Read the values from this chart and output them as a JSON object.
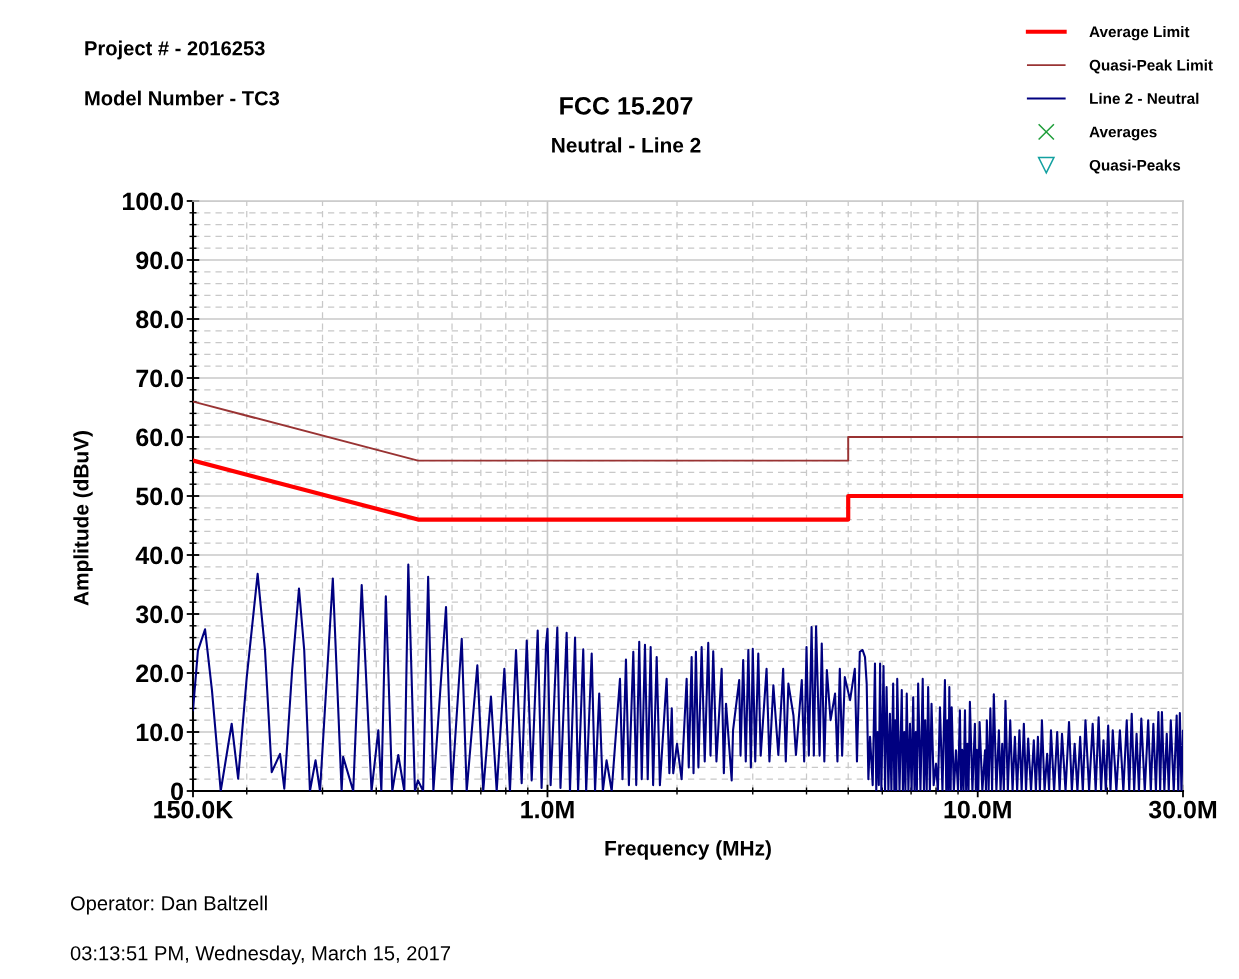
{
  "chart_data": {
    "type": "line",
    "title": "FCC 15.207",
    "subtitle": "Neutral - Line 2",
    "xlabel": "Frequency (MHz)",
    "ylabel": "Amplitude (dBuV)",
    "annotations": [
      "Project # - 2016253",
      "Model Number - TC3",
      "Operator: Dan Baltzell",
      "03:13:51 PM, Wednesday, March 15, 2017"
    ],
    "log": "x",
    "xlim": [
      150000,
      30000000
    ],
    "ylim": [
      0,
      100
    ],
    "xticks": [
      {
        "value": 150000,
        "label": "150.0K"
      },
      {
        "value": 200000,
        "label": null
      },
      {
        "value": 300000,
        "label": null
      },
      {
        "value": 400000,
        "label": null
      },
      {
        "value": 500000,
        "label": null
      },
      {
        "value": 600000,
        "label": null
      },
      {
        "value": 700000,
        "label": null
      },
      {
        "value": 800000,
        "label": null
      },
      {
        "value": 900000,
        "label": null
      },
      {
        "value": 1000000,
        "label": "1.0M"
      },
      {
        "value": 2000000,
        "label": null
      },
      {
        "value": 3000000,
        "label": null
      },
      {
        "value": 4000000,
        "label": null
      },
      {
        "value": 5000000,
        "label": null
      },
      {
        "value": 6000000,
        "label": null
      },
      {
        "value": 7000000,
        "label": null
      },
      {
        "value": 8000000,
        "label": null
      },
      {
        "value": 9000000,
        "label": null
      },
      {
        "value": 10000000,
        "label": "10.0M"
      },
      {
        "value": 20000000,
        "label": null
      },
      {
        "value": 30000000,
        "label": "30.0M"
      }
    ],
    "yticks": [
      0,
      {
        "value": 2,
        "label": null
      },
      {
        "value": 4,
        "label": null
      },
      {
        "value": 6,
        "label": null
      },
      {
        "value": 8,
        "label": null
      },
      {
        "value": 10,
        "label": "10.0"
      },
      {
        "value": 12,
        "label": null
      },
      {
        "value": 14,
        "label": null
      },
      {
        "value": 16,
        "label": null
      },
      {
        "value": 18,
        "label": null
      },
      {
        "value": 20,
        "label": "20.0"
      },
      {
        "value": 22,
        "label": null
      },
      {
        "value": 24,
        "label": null
      },
      {
        "value": 26,
        "label": null
      },
      {
        "value": 28,
        "label": null
      },
      {
        "value": 30,
        "label": "30.0"
      },
      {
        "value": 32,
        "label": null
      },
      {
        "value": 34,
        "label": null
      },
      {
        "value": 36,
        "label": null
      },
      {
        "value": 38,
        "label": null
      },
      {
        "value": 40,
        "label": "40.0"
      },
      {
        "value": 42,
        "label": null
      },
      {
        "value": 44,
        "label": null
      },
      {
        "value": 46,
        "label": null
      },
      {
        "value": 48,
        "label": null
      },
      {
        "value": 50,
        "label": "50.0"
      },
      {
        "value": 52,
        "label": null
      },
      {
        "value": 54,
        "label": null
      },
      {
        "value": 56,
        "label": null
      },
      {
        "value": 58,
        "label": null
      },
      {
        "value": 60,
        "label": "60.0"
      },
      {
        "value": 62,
        "label": null
      },
      {
        "value": 64,
        "label": null
      },
      {
        "value": 66,
        "label": null
      },
      {
        "value": 68,
        "label": null
      },
      {
        "value": 70,
        "label": "70.0"
      },
      {
        "value": 72,
        "label": null
      },
      {
        "value": 74,
        "label": null
      },
      {
        "value": 76,
        "label": null
      },
      {
        "value": 78,
        "label": null
      },
      {
        "value": 80,
        "label": "80.0"
      },
      {
        "value": 82,
        "label": null
      },
      {
        "value": 84,
        "label": null
      },
      {
        "value": 86,
        "label": null
      },
      {
        "value": 88,
        "label": null
      },
      {
        "value": 90,
        "label": "90.0"
      },
      {
        "value": 92,
        "label": null
      },
      {
        "value": 94,
        "label": null
      },
      {
        "value": 96,
        "label": null
      },
      {
        "value": 98,
        "label": null
      },
      {
        "value": 100,
        "label": "100.0"
      }
    ],
    "grid": true,
    "legend": "top right",
    "series": [
      {
        "name": "Average Limit",
        "color": "#ff0000",
        "x": [
          150000,
          500000,
          5000000,
          5000000,
          30000000
        ],
        "values": [
          56,
          46,
          46,
          50,
          50
        ]
      },
      {
        "name": "Quasi-Peak Limit",
        "color": "#993333",
        "x": [
          150000,
          500000,
          5000000,
          5000000,
          30000000
        ],
        "values": [
          66,
          56,
          56,
          60,
          60
        ]
      },
      {
        "name": "Line 2 - Neutral",
        "color": "#000080",
        "x": [
          150000,
          154000,
          160000,
          166000,
          174000,
          184500,
          191000,
          200000,
          212000,
          220500,
          228600,
          239000,
          244500,
          255000,
          264500,
          272000,
          280500,
          289000,
          296000,
          317000,
          332300,
          335000,
          353600,
          370000,
          390000,
          404400,
          411000,
          421000,
          435800,
          450000,
          464800,
          474800,
          492000,
          500000,
          514000,
          528000,
          543000,
          581000,
          599000,
          632000,
          649000,
          687000,
          709000,
          739000,
          762000,
          794000,
          818000,
          845000,
          871000,
          895000,
          919000,
          949000,
          969000,
          992000,
          1000000,
          1017000,
          1054000,
          1072000,
          1108000,
          1128000,
          1159000,
          1178000,
          1211000,
          1230000,
          1267000,
          1290000,
          1319000,
          1345000,
          1372000,
          1410000,
          1474000,
          1494000,
          1522000,
          1546000,
          1583000,
          1608000,
          1634000,
          1656000,
          1685000,
          1710000,
          1737000,
          1760000,
          1794000,
          1825000,
          1892000,
          1920000,
          1945000,
          1960000,
          2000000,
          2050000,
          2106000,
          2130000,
          2163000,
          2185000,
          2213000,
          2243000,
          2282000,
          2320000,
          2364000,
          2393000,
          2428000,
          2470000,
          2540000,
          2570000,
          2600000,
          2680000,
          2700000,
          2790000,
          2810000,
          2850000,
          2890000,
          2930000,
          2970000,
          3000000,
          3040000,
          3090000,
          3130000,
          3230000,
          3280000,
          3350000,
          3440000,
          3530000,
          3580000,
          3630000,
          3730000,
          3780000,
          3900000,
          3950000,
          4000000,
          4050000,
          4110000,
          4160000,
          4210000,
          4290000,
          4340000,
          4400000,
          4460000,
          4550000,
          4660000,
          4720000,
          4780000,
          4840000,
          4910000,
          5050000,
          5180000,
          5240000,
          5320000,
          5400000,
          5470000,
          5520000,
          5570000,
          5620000,
          5700000,
          5770000,
          5810000,
          5850000,
          5890000,
          5930000,
          5970000,
          6040000,
          6090000,
          6140000,
          6200000,
          6250000,
          6300000,
          6360000,
          6400000,
          6430000,
          6470000,
          6500000,
          6580000,
          6660000,
          6700000,
          6750000,
          6790000,
          6840000,
          6900000,
          6960000,
          7020000,
          7080000,
          7130000,
          7180000,
          7220000,
          7270000,
          7360000,
          7450000,
          7500000,
          7550000,
          7610000,
          7670000,
          7740000,
          7810000,
          7900000,
          8000000,
          8080000,
          8170000,
          8280000,
          8390000,
          8450000,
          8500000,
          8550000,
          8590000,
          8650000,
          8700000,
          8800000,
          8900000,
          9000000,
          9090000,
          9150000,
          9200000,
          9270000,
          9340000,
          9400000,
          9460000,
          9520000,
          9590000,
          9720000,
          9850000,
          9900000,
          9960000,
          10030000,
          10100000,
          10250000,
          10400000,
          10450000,
          10500000,
          10600000,
          10700000,
          10800000,
          10900000,
          11050000,
          11200000,
          11300000,
          11400000,
          11500000,
          11600000,
          11750000,
          11900000,
          12050000,
          12200000,
          12350000,
          12500000,
          12650000,
          12800000,
          12950000,
          13100000,
          13300000,
          13500000,
          13650000,
          13800000,
          13950000,
          14100000,
          14300000,
          14500000,
          14650000,
          14800000,
          15050000,
          15300000,
          15500000,
          15700000,
          16000000,
          16300000,
          16550000,
          16800000,
          17050000,
          17300000,
          17550000,
          17800000,
          18150000,
          18500000,
          18800000,
          19100000,
          19350000,
          19600000,
          19850000,
          20100000,
          20350000,
          20600000,
          21000000,
          21400000,
          21800000,
          22200000,
          22500000,
          22800000,
          23100000,
          23400000,
          23700000,
          24000000,
          24450000,
          24900000,
          25250000,
          25600000,
          25950000,
          26300000,
          26550000,
          26800000,
          27150000,
          27500000,
          27800000,
          28100000,
          28550000,
          29000000,
          29250000,
          29500000,
          29750000,
          30000000
        ],
        "values": [
          13.7,
          23.8,
          27.4,
          17.1,
          0,
          11.4,
          2.1,
          19.3,
          36.8,
          23.9,
          3.2,
          6.3,
          0.4,
          20.5,
          34.3,
          23.9,
          0,
          5.2,
          0,
          36.0,
          0,
          5.8,
          0,
          34.9,
          0,
          10.3,
          0,
          33.0,
          0,
          6.1,
          0,
          38.4,
          0,
          1.8,
          0,
          36.3,
          0,
          31.2,
          0,
          25.8,
          0,
          21.3,
          0,
          16.0,
          0,
          20.7,
          0,
          23.9,
          1.3,
          25.5,
          1.8,
          27.2,
          0.5,
          24.7,
          27.5,
          1,
          27.7,
          0.5,
          26.8,
          0,
          26.0,
          0,
          24.0,
          0,
          23.3,
          0,
          16.5,
          0,
          5.2,
          0,
          19.0,
          2,
          22.3,
          1,
          23.6,
          1,
          25.3,
          2,
          24.8,
          2,
          24.4,
          1,
          22.7,
          1,
          19.0,
          3,
          14.0,
          3,
          8,
          2,
          19.0,
          4,
          22.7,
          3,
          23.6,
          4,
          24.4,
          5,
          25.1,
          6,
          23.7,
          5,
          20.7,
          3,
          14.8,
          1.8,
          10.3,
          18.8,
          6,
          22.2,
          5,
          23.9,
          4,
          24.1,
          5,
          23.3,
          6,
          20.7,
          5,
          17.9,
          6.1,
          20.7,
          5,
          18.2,
          12.8,
          6.1,
          18.8,
          5,
          24.4,
          6,
          27.8,
          6,
          27.9,
          6,
          25.0,
          5,
          20.5,
          12.0,
          16.5,
          5,
          20.7,
          6,
          19.3,
          15.4,
          20.7,
          5,
          23.6,
          23.9,
          22.7,
          18.2,
          2,
          9.2,
          1,
          21.6,
          0,
          10,
          1,
          21.6,
          0,
          21.2,
          0,
          17.6,
          0,
          13.1,
          0,
          18.2,
          0,
          12,
          0,
          19.0,
          0,
          17.1,
          0,
          10,
          0,
          16.5,
          0,
          11.4,
          0,
          15.9,
          0,
          10,
          0,
          18.2,
          0,
          19.0,
          0,
          12,
          0,
          17.6,
          0,
          14.8,
          1,
          4.6,
          0,
          14.2,
          0,
          18.8,
          0,
          12,
          0,
          17.6,
          0,
          14.2,
          0,
          6.9,
          0,
          13.7,
          0,
          7,
          0,
          13.7,
          0,
          8,
          0,
          15.1,
          0,
          11.4,
          0,
          7,
          0,
          11.7,
          0,
          6.9,
          0,
          12,
          0,
          14.0,
          0,
          16.4,
          0,
          10.3,
          0,
          8,
          0,
          15.3,
          0,
          12.0,
          0,
          9.2,
          0,
          10.3,
          0,
          11.4,
          0,
          8.9,
          0,
          8.6,
          0,
          9.2,
          0,
          12.0,
          0,
          6.3,
          0,
          10.3,
          0,
          10.0,
          0,
          9.7,
          0,
          11.7,
          0,
          8.0,
          0,
          9.2,
          0,
          12.0,
          0,
          11.4,
          0,
          12.5,
          0,
          8.6,
          0,
          11.1,
          0,
          10.3,
          0,
          10.3,
          0,
          12.0,
          0,
          13.1,
          0,
          9.7,
          0,
          12.3,
          0,
          12.0,
          0,
          11.4,
          0,
          13.4,
          0,
          13.4,
          0,
          9.7,
          0,
          12.0,
          0,
          12.8,
          0,
          13.2,
          0,
          10.2
        ]
      },
      {
        "name": "Averages",
        "type": "scatter",
        "marker": "cross",
        "color": "#1f9e3a"
      },
      {
        "name": "Quasi-Peaks",
        "type": "scatter",
        "marker": "triangle",
        "color": "#12a0a0"
      }
    ]
  }
}
